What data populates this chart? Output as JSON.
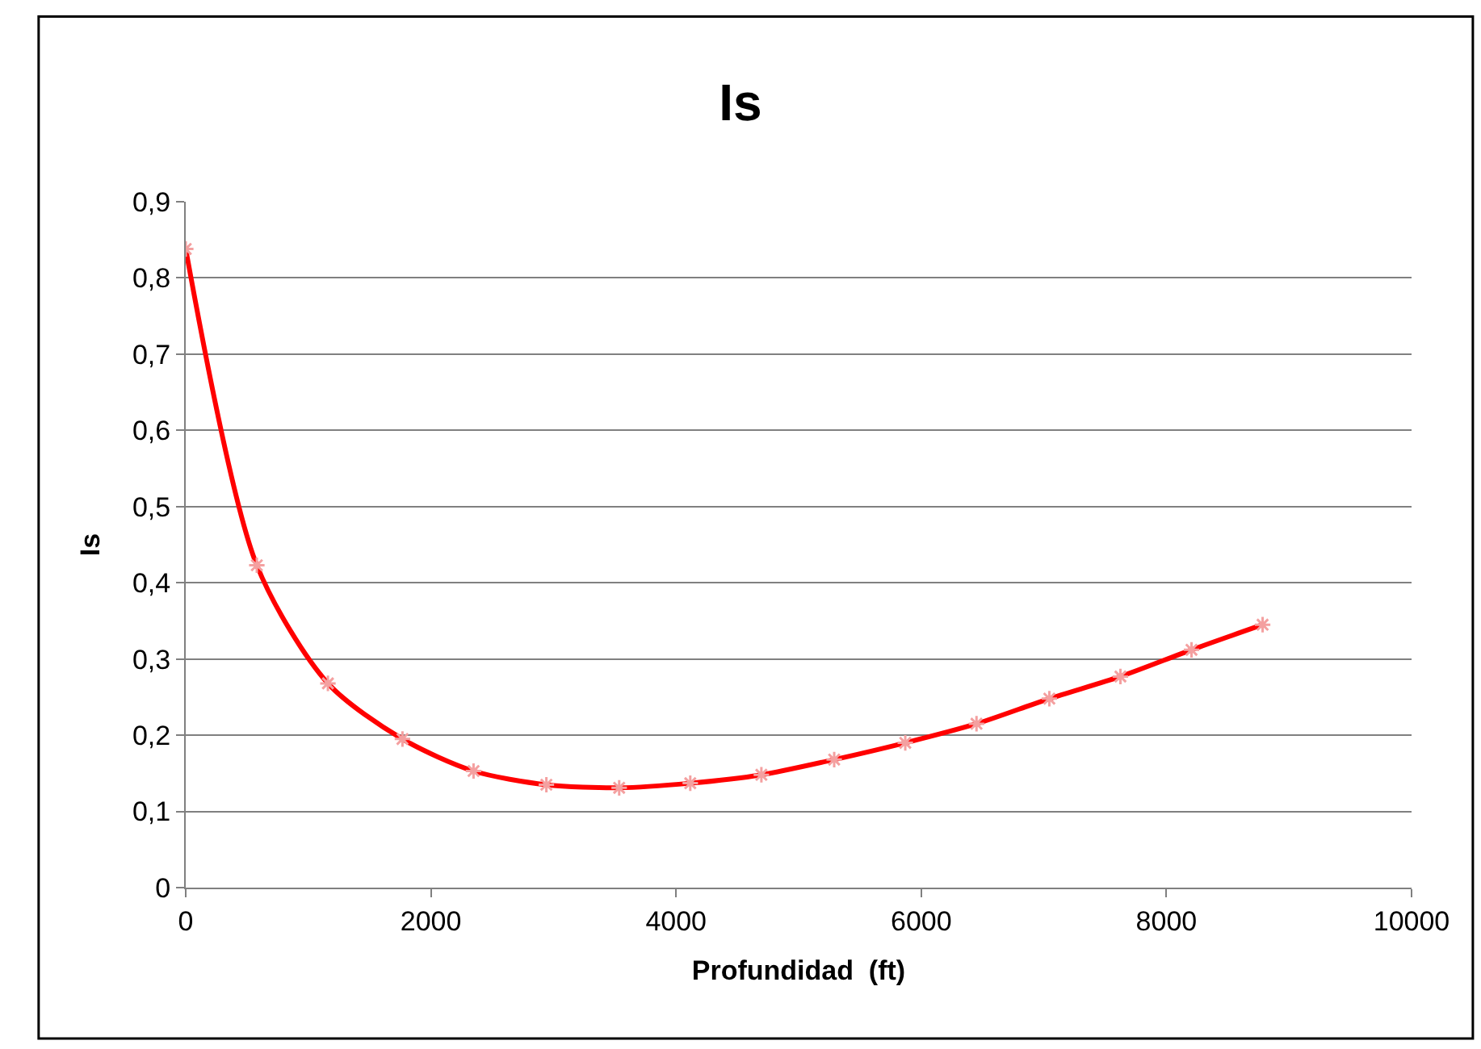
{
  "chart_data": {
    "type": "line",
    "title": "Is",
    "xlabel": "Profundidad  (ft)",
    "ylabel": "Is",
    "x": [
      0,
      580,
      1160,
      1768,
      2348,
      2942,
      3536,
      4116,
      4696,
      5290,
      5870,
      6451,
      7045,
      7625,
      8205,
      8785
    ],
    "series": [
      {
        "color": "#ff0000",
        "marker": "none",
        "values": [
          0.838,
          0.423,
          0.268,
          0.195,
          0.153,
          0.135,
          0.131,
          0.137,
          0.148,
          0.168,
          0.19,
          0.215,
          0.248,
          0.277,
          0.312,
          0.345
        ]
      },
      {
        "type": "scatter",
        "color": "#f4a0a0",
        "marker": "cross",
        "values": [
          0.838,
          0.423,
          0.268,
          0.195,
          0.153,
          0.135,
          0.131,
          0.137,
          0.148,
          0.168,
          0.19,
          0.215,
          0.248,
          0.277,
          0.312,
          0.345
        ]
      }
    ],
    "xlim": [
      0,
      10000
    ],
    "xticks": [
      0,
      2000,
      4000,
      6000,
      8000,
      10000
    ],
    "ylim": [
      0,
      0.9
    ],
    "yticks": [
      {
        "value": 0,
        "label": "0"
      },
      {
        "value": 0.1,
        "label": "0,1"
      },
      {
        "value": 0.2,
        "label": "0,2"
      },
      {
        "value": 0.3,
        "label": "0,3"
      },
      {
        "value": 0.4,
        "label": "0,4"
      },
      {
        "value": 0.5,
        "label": "0,5"
      },
      {
        "value": 0.6,
        "label": "0,6"
      },
      {
        "value": 0.7,
        "label": "0,7"
      },
      {
        "value": 0.8,
        "label": "0,8"
      },
      {
        "value": 0.9,
        "label": "0,9"
      }
    ],
    "grid": "y"
  }
}
